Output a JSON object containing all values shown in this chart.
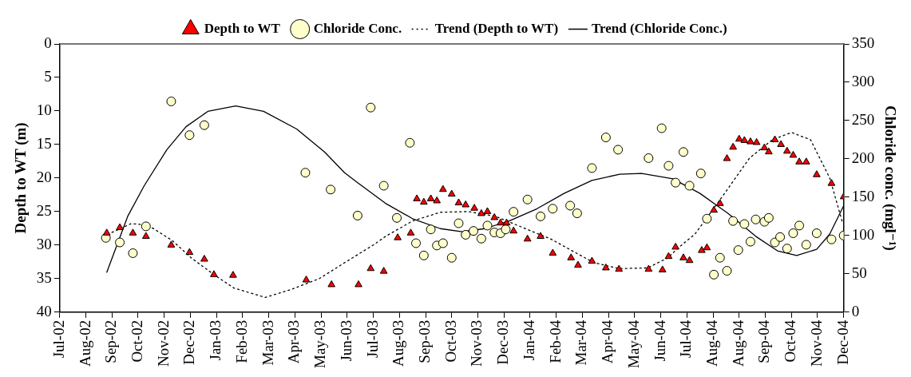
{
  "chart_data": {
    "type": "scatter",
    "ylabel": "Depth to WT (m)",
    "y2label": "Chloride conc. (mgl⁻¹)",
    "xlim": [
      "2002-07-13",
      "2004-12-29"
    ],
    "xticks": [
      {
        "value": "2002-07-13",
        "label": "Jul-02"
      },
      {
        "value": "2002-08-12",
        "label": "Aug-02"
      },
      {
        "value": "2002-09-11",
        "label": "Sep-02"
      },
      {
        "value": "2002-10-11",
        "label": "Oct-02"
      },
      {
        "value": "2002-11-10",
        "label": "Nov-02"
      },
      {
        "value": "2002-12-10",
        "label": "Dec-02"
      },
      {
        "value": "2003-01-09",
        "label": "Jan-03"
      },
      {
        "value": "2003-02-08",
        "label": "Feb-03"
      },
      {
        "value": "2003-03-10",
        "label": "Mar-03"
      },
      {
        "value": "2003-04-09",
        "label": "Apr-03"
      },
      {
        "value": "2003-05-09",
        "label": "May-03"
      },
      {
        "value": "2003-06-08",
        "label": "Jun-03"
      },
      {
        "value": "2003-07-08",
        "label": "Jul-03"
      },
      {
        "value": "2003-08-07",
        "label": "Aug-03"
      },
      {
        "value": "2003-09-06",
        "label": "Sep-03"
      },
      {
        "value": "2003-10-06",
        "label": "Oct-03"
      },
      {
        "value": "2003-11-05",
        "label": "Nov-03"
      },
      {
        "value": "2003-12-05",
        "label": "Dec-03"
      },
      {
        "value": "2004-01-04",
        "label": "Jan-04"
      },
      {
        "value": "2004-02-03",
        "label": "Feb-04"
      },
      {
        "value": "2004-03-04",
        "label": "Mar-04"
      },
      {
        "value": "2004-04-03",
        "label": "Apr-04"
      },
      {
        "value": "2004-05-03",
        "label": "May-04"
      },
      {
        "value": "2004-06-02",
        "label": "Jun-04"
      },
      {
        "value": "2004-07-02",
        "label": "Jul-04"
      },
      {
        "value": "2004-08-01",
        "label": "Aug-04"
      },
      {
        "value": "2004-08-31",
        "label": "Aug-04"
      },
      {
        "value": "2004-09-30",
        "label": "Sep-04"
      },
      {
        "value": "2004-10-30",
        "label": "Oct-04"
      },
      {
        "value": "2004-11-29",
        "label": "Nov-04"
      },
      {
        "value": "2004-12-29",
        "label": "Dec-04"
      }
    ],
    "ylim": [
      40,
      0
    ],
    "yticks": [
      0,
      5,
      10,
      15,
      20,
      25,
      30,
      35,
      40
    ],
    "y2lim": [
      0,
      350
    ],
    "y2ticks": [
      0,
      50,
      100,
      150,
      200,
      250,
      300,
      350
    ],
    "grid": false,
    "legend": "top",
    "series": [
      {
        "name": "Depth to WT",
        "type": "scatter",
        "marker": "triangle",
        "color": "#ff0000",
        "x": [
          "2002-09-05",
          "2002-09-20",
          "2002-10-05",
          "2002-10-20",
          "2002-11-18",
          "2002-12-09",
          "2002-12-26",
          "2003-01-06",
          "2003-01-28",
          "2003-04-22",
          "2003-05-21",
          "2003-06-21",
          "2003-07-05",
          "2003-07-20",
          "2003-08-05",
          "2003-08-20",
          "2003-08-27",
          "2003-09-04",
          "2003-09-12",
          "2003-09-19",
          "2003-09-26",
          "2003-10-06",
          "2003-10-14",
          "2003-10-22",
          "2003-11-01",
          "2003-11-09",
          "2003-11-16",
          "2003-11-24",
          "2003-12-01",
          "2003-12-08",
          "2003-12-16",
          "2004-01-01",
          "2004-01-16",
          "2004-01-30",
          "2004-02-20",
          "2004-02-28",
          "2004-03-15",
          "2004-03-31",
          "2004-04-15",
          "2004-05-19",
          "2004-06-04",
          "2004-06-11",
          "2004-06-19",
          "2004-06-28",
          "2004-07-05",
          "2004-07-19",
          "2004-07-25",
          "2004-08-02",
          "2004-08-09",
          "2004-08-17",
          "2004-08-24",
          "2004-08-31",
          "2004-09-06",
          "2004-09-13",
          "2004-09-20",
          "2004-09-29",
          "2004-10-04",
          "2004-10-11",
          "2004-10-18",
          "2004-10-25",
          "2004-11-01",
          "2004-11-08",
          "2004-11-16",
          "2004-11-28",
          "2004-12-15",
          "2004-12-29"
        ],
        "values": [
          28.2,
          27.4,
          28.2,
          28.7,
          30.0,
          31.1,
          32.1,
          34.4,
          34.5,
          35.2,
          35.9,
          35.9,
          33.5,
          33.9,
          28.9,
          28.2,
          23.1,
          23.6,
          23.1,
          23.4,
          21.7,
          22.4,
          23.7,
          24.0,
          24.5,
          25.3,
          25.0,
          25.9,
          26.7,
          26.7,
          27.9,
          29.1,
          28.7,
          31.2,
          31.9,
          33.0,
          32.4,
          33.4,
          33.6,
          33.6,
          33.7,
          31.7,
          30.3,
          31.9,
          32.3,
          30.8,
          30.4,
          24.8,
          23.8,
          17.1,
          15.4,
          14.2,
          14.4,
          14.6,
          14.7,
          15.5,
          16.1,
          14.3,
          15.0,
          16.0,
          16.6,
          17.6,
          17.6,
          19.5,
          20.8,
          22.8
        ]
      },
      {
        "name": "Chloride Conc.",
        "type": "scatter",
        "axis": "y2",
        "marker": "circle",
        "color": "#ffffcc",
        "x": [
          "2002-09-04",
          "2002-09-20",
          "2002-10-05",
          "2002-10-20",
          "2002-11-18",
          "2002-12-09",
          "2002-12-26",
          "2003-04-21",
          "2003-05-20",
          "2003-06-20",
          "2003-07-05",
          "2003-07-20",
          "2003-08-04",
          "2003-08-19",
          "2003-08-26",
          "2003-09-04",
          "2003-09-12",
          "2003-09-19",
          "2003-09-26",
          "2003-10-06",
          "2003-10-14",
          "2003-10-22",
          "2003-10-31",
          "2003-11-09",
          "2003-11-16",
          "2003-11-24",
          "2003-12-01",
          "2003-12-07",
          "2003-12-16",
          "2004-01-01",
          "2004-01-16",
          "2004-01-30",
          "2004-02-19",
          "2004-02-27",
          "2004-03-15",
          "2004-03-31",
          "2004-04-14",
          "2004-05-19",
          "2004-06-03",
          "2004-06-11",
          "2004-06-19",
          "2004-06-28",
          "2004-07-05",
          "2004-07-18",
          "2004-07-25",
          "2004-08-02",
          "2004-08-09",
          "2004-08-17",
          "2004-08-24",
          "2004-08-30",
          "2004-09-06",
          "2004-09-13",
          "2004-09-19",
          "2004-09-29",
          "2004-10-04",
          "2004-10-11",
          "2004-10-17",
          "2004-10-25",
          "2004-11-01",
          "2004-11-08",
          "2004-11-16",
          "2004-11-28",
          "2004-12-15",
          "2004-12-29"
        ],
        "values": [
          97,
          91,
          77,
          112,
          275,
          231,
          244,
          182,
          160,
          126,
          267,
          165,
          123,
          221,
          90,
          74,
          108,
          87,
          90,
          71,
          116,
          101,
          106,
          96,
          113,
          104,
          103,
          108,
          131,
          147,
          125,
          135,
          139,
          129,
          188,
          228,
          212,
          201,
          240,
          191,
          169,
          209,
          165,
          181,
          122,
          49,
          71,
          54,
          119,
          81,
          115,
          92,
          121,
          118,
          123,
          91,
          98,
          83,
          103,
          113,
          88,
          103,
          95,
          100
        ]
      },
      {
        "name": "Trend (Depth to WT)",
        "type": "line",
        "marker": "none",
        "line_style": "dotted",
        "color": "#000000",
        "x": [
          "2002-09-06",
          "2002-10-03",
          "2002-10-22",
          "2002-11-19",
          "2002-12-11",
          "2003-01-06",
          "2003-01-29",
          "2003-03-06",
          "2003-04-05",
          "2003-05-07",
          "2003-06-09",
          "2003-07-09",
          "2003-07-22",
          "2003-08-22",
          "2003-09-23",
          "2003-10-25",
          "2003-11-25",
          "2003-12-27",
          "2004-01-28",
          "2004-02-29",
          "2004-03-17",
          "2004-04-15",
          "2004-05-18",
          "2004-06-10",
          "2004-06-23",
          "2004-07-11",
          "2004-08-12",
          "2004-09-12",
          "2004-10-08",
          "2004-10-30",
          "2004-11-21",
          "2004-12-13",
          "2004-12-28"
        ],
        "values": [
          28.4,
          26.8,
          27.0,
          29.3,
          31.9,
          34.4,
          36.4,
          37.8,
          36.6,
          35.0,
          32.3,
          29.9,
          28.7,
          26.4,
          25.1,
          25.0,
          25.7,
          27.4,
          29.1,
          31.4,
          32.6,
          33.5,
          33.4,
          31.9,
          30.3,
          28.4,
          22.7,
          17.0,
          14.3,
          13.2,
          14.3,
          20.0,
          26.8
        ]
      },
      {
        "name": "Trend (Chloride Conc.)",
        "type": "line",
        "axis": "y2",
        "marker": "none",
        "line_style": "solid",
        "color": "#000000",
        "x": [
          "2002-09-05",
          "2002-09-29",
          "2002-10-18",
          "2002-11-13",
          "2002-12-05",
          "2002-12-30",
          "2003-01-31",
          "2003-03-04",
          "2003-04-11",
          "2003-05-13",
          "2003-06-05",
          "2003-06-20",
          "2003-07-22",
          "2003-08-22",
          "2003-09-23",
          "2003-10-18",
          "2003-11-13",
          "2003-12-11",
          "2004-01-12",
          "2004-02-12",
          "2004-03-15",
          "2004-04-16",
          "2004-05-11",
          "2004-06-16",
          "2004-07-17",
          "2004-08-18",
          "2004-09-19",
          "2004-10-14",
          "2004-11-05",
          "2004-11-28",
          "2004-12-13",
          "2004-12-29"
        ],
        "values": [
          52,
          125,
          165,
          212,
          242,
          262,
          269,
          262,
          239,
          209,
          182,
          169,
          142,
          122,
          109,
          105,
          109,
          119,
          135,
          155,
          172,
          180,
          181,
          174,
          155,
          129,
          99,
          80,
          74,
          82,
          102,
          139
        ]
      }
    ]
  }
}
